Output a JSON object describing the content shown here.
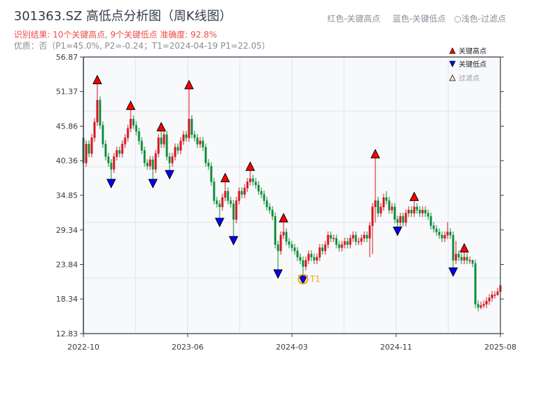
{
  "header": {
    "title": "301363.SZ 高低点分析图（周K线图）",
    "result_line": "识别结果: 10个关键高点, 9个关键低点  准确度: 92.8%",
    "quality_line": "优质：否（P1=45.0%, P2=-0.24；T1=2024-04-19 P1=22.05）",
    "legend_red": "红色-关键高点",
    "legend_blue": "蓝色-关键低点",
    "legend_light": "○浅色-过滤点"
  },
  "chart_data": {
    "type": "candlestick",
    "title": "301363.SZ 高低点分析图（周K线图）",
    "xlabel": "",
    "ylabel": "",
    "ylim": [
      12.83,
      56.87
    ],
    "y_ticks": [
      "56.87",
      "51.37",
      "45.86",
      "40.36",
      "34.85",
      "29.34",
      "23.84",
      "18.34",
      "12.83"
    ],
    "x_ticks": [
      "2022-10",
      "2023-06",
      "2024-03",
      "2024-11",
      "2025-08"
    ],
    "grid": true,
    "legend_placement": "top-right",
    "legend": [
      {
        "label": "关键高点",
        "marker": "triangle-up",
        "color": "#ff0000"
      },
      {
        "label": "关键低点",
        "marker": "triangle-down",
        "color": "#0000ff"
      },
      {
        "label": "过滤点",
        "marker": "triangle-up-light",
        "color": "#ffcccc"
      }
    ],
    "colors": {
      "up": "#e0101a",
      "down": "#0a8a35",
      "high_marker": "#ff0000",
      "low_marker": "#0000ff",
      "t1": "#f5a623"
    },
    "candle_format": [
      "open",
      "high",
      "low",
      "close"
    ],
    "candles": [
      [
        44,
        46,
        35.5,
        40
      ],
      [
        40,
        43.6,
        39.4,
        43
      ],
      [
        43,
        43.6,
        40.9,
        41.5
      ],
      [
        41.5,
        44.6,
        40.9,
        44
      ],
      [
        44,
        47.1,
        43.4,
        46.5
      ],
      [
        46.5,
        52.6,
        45.9,
        50
      ],
      [
        50,
        50.6,
        45.4,
        46
      ],
      [
        46,
        46.6,
        42.4,
        43
      ],
      [
        43,
        43.6,
        40.4,
        41
      ],
      [
        41,
        41.6,
        39.4,
        40
      ],
      [
        40,
        40.6,
        37.4,
        39
      ],
      [
        39,
        41.6,
        38.4,
        41
      ],
      [
        41,
        42.6,
        40.4,
        42
      ],
      [
        42,
        42.6,
        40.9,
        41.5
      ],
      [
        41.5,
        43.6,
        40.9,
        43
      ],
      [
        43,
        44.6,
        42.4,
        44
      ],
      [
        44,
        46.1,
        43.4,
        45.5
      ],
      [
        45.5,
        48.5,
        44.9,
        47
      ],
      [
        47,
        47.6,
        45.4,
        46
      ],
      [
        46,
        46.6,
        44.4,
        45
      ],
      [
        45,
        45.6,
        42.9,
        43.5
      ],
      [
        43.5,
        44.1,
        41.4,
        42
      ],
      [
        42,
        42.6,
        39.4,
        40
      ],
      [
        40,
        40.6,
        38.9,
        39.5
      ],
      [
        39.5,
        41.1,
        38.9,
        40.5
      ],
      [
        40.5,
        41.1,
        37.4,
        39
      ],
      [
        39,
        42.1,
        38.4,
        41.5
      ],
      [
        41.5,
        44.6,
        40.9,
        44
      ],
      [
        44,
        45.1,
        42.4,
        43
      ],
      [
        43,
        45.1,
        42.4,
        44.5
      ],
      [
        44.5,
        45.1,
        40.4,
        41
      ],
      [
        41,
        41.6,
        38.8,
        40
      ],
      [
        40,
        41.6,
        39.4,
        41
      ],
      [
        41,
        43.1,
        40.4,
        42.5
      ],
      [
        42.5,
        43.1,
        41.4,
        42
      ],
      [
        42,
        44.1,
        41.4,
        43.5
      ],
      [
        43.5,
        45.1,
        42.9,
        44.5
      ],
      [
        44.5,
        45.1,
        43.4,
        44
      ],
      [
        44,
        51.8,
        43.4,
        47
      ],
      [
        47,
        47.6,
        43.9,
        44.5
      ],
      [
        44.5,
        45.1,
        43.4,
        44
      ],
      [
        44,
        44.6,
        42.4,
        43
      ],
      [
        43,
        44.1,
        42.4,
        43.5
      ],
      [
        43.5,
        44.1,
        41.9,
        42.5
      ],
      [
        42.5,
        43.1,
        39.4,
        40
      ],
      [
        40,
        40.6,
        38.9,
        39.5
      ],
      [
        39.5,
        40.1,
        36.4,
        37
      ],
      [
        37,
        37.6,
        33.4,
        34
      ],
      [
        34,
        34.6,
        32.9,
        33.5
      ],
      [
        33.5,
        34.1,
        31.2,
        33
      ],
      [
        33,
        35.1,
        32.4,
        34.5
      ],
      [
        34.5,
        37,
        33.9,
        35.5
      ],
      [
        35.5,
        36.1,
        33.4,
        34
      ],
      [
        34,
        34.6,
        32.9,
        33.5
      ],
      [
        33.5,
        34.1,
        28.3,
        31
      ],
      [
        31,
        34.6,
        30.4,
        34
      ],
      [
        34,
        36.1,
        33.4,
        35.5
      ],
      [
        35.5,
        36.1,
        34.4,
        35
      ],
      [
        35,
        36.6,
        34.4,
        36
      ],
      [
        36,
        37.6,
        35.4,
        37
      ],
      [
        37,
        38.8,
        36.4,
        37.5
      ],
      [
        37.5,
        38.1,
        36.4,
        37
      ],
      [
        37,
        37.6,
        35.9,
        36.5
      ],
      [
        36.5,
        37.1,
        34.9,
        35.5
      ],
      [
        35.5,
        36.1,
        34.4,
        35
      ],
      [
        35,
        35.6,
        33.4,
        34
      ],
      [
        34,
        34.6,
        32.4,
        33
      ],
      [
        33,
        33.6,
        31.9,
        32.5
      ],
      [
        32.5,
        33.1,
        30.9,
        31.5
      ],
      [
        31.5,
        32.1,
        26.4,
        27
      ],
      [
        27,
        27.6,
        23,
        26
      ],
      [
        26,
        29.1,
        25.4,
        28.5
      ],
      [
        28.5,
        30.6,
        27.9,
        29
      ],
      [
        29,
        29.6,
        26.9,
        27.5
      ],
      [
        27.5,
        28.1,
        26.4,
        27
      ],
      [
        27,
        27.6,
        25.9,
        26.5
      ],
      [
        26.5,
        27.1,
        25.4,
        26
      ],
      [
        26,
        26.6,
        24.4,
        25
      ],
      [
        25,
        25.6,
        23.9,
        24.5
      ],
      [
        24.5,
        25.1,
        22.05,
        23.5
      ],
      [
        23.5,
        25.1,
        22.9,
        24.5
      ],
      [
        24.5,
        26.1,
        23.9,
        25.5
      ],
      [
        25.5,
        26.1,
        24.4,
        25
      ],
      [
        25,
        25.6,
        23.9,
        24.5
      ],
      [
        24.5,
        25.6,
        23.9,
        25
      ],
      [
        25,
        27.1,
        24.4,
        26.5
      ],
      [
        26.5,
        27.1,
        25.4,
        26
      ],
      [
        26,
        27.6,
        25.4,
        27
      ],
      [
        27,
        29.1,
        26.4,
        28.5
      ],
      [
        28.5,
        29.1,
        27.4,
        28
      ],
      [
        28,
        28.6,
        27.4,
        28
      ],
      [
        28,
        28.6,
        26.4,
        27
      ],
      [
        27,
        27.6,
        25.9,
        26.5
      ],
      [
        26.5,
        27.6,
        25.9,
        27
      ],
      [
        27,
        28.1,
        26.4,
        27.5
      ],
      [
        27.5,
        28.1,
        26.4,
        27
      ],
      [
        27,
        28.6,
        26.4,
        28
      ],
      [
        28,
        29.1,
        27.4,
        28.5
      ],
      [
        28.5,
        29.1,
        26.9,
        27.5
      ],
      [
        27.5,
        28.1,
        26.9,
        27.5
      ],
      [
        27.5,
        28.6,
        26.9,
        28
      ],
      [
        28,
        29.1,
        27.4,
        28.5
      ],
      [
        28.5,
        29.1,
        27.4,
        28
      ],
      [
        28,
        30.6,
        25,
        30
      ],
      [
        30,
        33.6,
        25.5,
        33
      ],
      [
        33,
        40.8,
        30.5,
        34
      ],
      [
        34,
        34.6,
        31.4,
        32
      ],
      [
        32,
        33.6,
        31.4,
        33
      ],
      [
        33,
        35.1,
        32.4,
        34.5
      ],
      [
        34.5,
        35.5,
        33.4,
        34
      ],
      [
        34,
        34.6,
        31.9,
        32.5
      ],
      [
        32.5,
        33.6,
        31.9,
        33
      ],
      [
        33,
        33.6,
        30.4,
        31
      ],
      [
        31,
        31.6,
        29.8,
        30.5
      ],
      [
        30.5,
        32.1,
        29.9,
        31.5
      ],
      [
        31.5,
        32.1,
        29.9,
        30.5
      ],
      [
        30.5,
        32.6,
        29.9,
        32
      ],
      [
        32,
        33.1,
        31.4,
        32.5
      ],
      [
        32.5,
        33.1,
        31.4,
        32
      ],
      [
        32,
        34,
        31.4,
        33
      ],
      [
        33,
        33.6,
        31.9,
        32.5
      ],
      [
        32.5,
        33.1,
        31.4,
        32
      ],
      [
        32,
        33.1,
        31.4,
        32.5
      ],
      [
        32.5,
        33.1,
        31.4,
        32
      ],
      [
        32,
        32.6,
        30.9,
        31.5
      ],
      [
        31.5,
        32.1,
        29.4,
        30
      ],
      [
        30,
        30.6,
        28.9,
        29.5
      ],
      [
        29.5,
        30.1,
        28.4,
        29
      ],
      [
        29,
        29.6,
        27.9,
        28.5
      ],
      [
        28.5,
        29.1,
        27.4,
        28
      ],
      [
        28,
        29.1,
        27.4,
        28.5
      ],
      [
        28.5,
        30.6,
        27.9,
        29
      ],
      [
        29,
        29.6,
        27.9,
        28.5
      ],
      [
        28.5,
        29.1,
        23.3,
        24.5
      ],
      [
        24.5,
        27.6,
        23.9,
        25.5
      ],
      [
        25.5,
        26.1,
        24.4,
        25
      ],
      [
        25,
        25.6,
        23.9,
        24.5
      ],
      [
        24.5,
        25.8,
        23.9,
        25
      ],
      [
        25,
        25.6,
        23.9,
        24.5
      ],
      [
        24.5,
        25.1,
        23.9,
        24.5
      ],
      [
        24.5,
        24.6,
        23.4,
        24
      ],
      [
        24,
        24.6,
        16.9,
        17.5
      ],
      [
        17.5,
        18.1,
        16.4,
        17
      ],
      [
        17,
        17.9,
        16.7,
        17.3
      ],
      [
        17.3,
        18.1,
        16.9,
        17.5
      ],
      [
        17.5,
        18.6,
        16.9,
        18
      ],
      [
        18,
        19.1,
        17.4,
        18.5
      ],
      [
        18.5,
        19.6,
        17.9,
        19
      ],
      [
        19,
        19.6,
        18.4,
        19
      ],
      [
        19,
        20.1,
        18.9,
        19.5
      ],
      [
        19.5,
        21.6,
        18.9,
        20.5
      ]
    ],
    "key_high_candles": [
      5,
      17,
      28,
      38,
      51,
      60,
      72,
      105,
      119,
      137
    ],
    "key_low_candles": [
      10,
      25,
      31,
      49,
      54,
      70,
      79,
      113,
      133
    ],
    "annotations": [
      {
        "label": "T1",
        "date": "2024-04-19",
        "price": 22.05,
        "candle": 79
      }
    ]
  }
}
